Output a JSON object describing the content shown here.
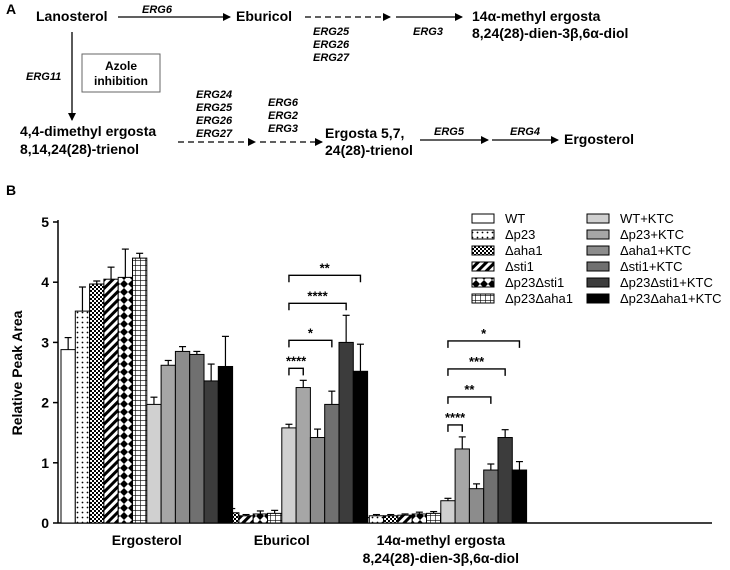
{
  "panel_a": {
    "label": "A",
    "nodes": {
      "lanosterol": "Lanosterol",
      "eburicol": "Eburicol",
      "methyl_ergosta_l1": "14α-methyl ergosta",
      "methyl_ergosta_l2": "8,24(28)-dien-3β,6α-diol",
      "dimethyl_l1": "4,4-dimethyl ergosta",
      "dimethyl_l2": "8,14,24(28)-trienol",
      "ergosta_l1": "Ergosta 5,7,",
      "ergosta_l2": "24(28)-trienol",
      "ergosterol": "Ergosterol"
    },
    "enzymes": {
      "erg6_top": "ERG6",
      "erg11": "ERG11",
      "erg3_top": "ERG3",
      "erg5": "ERG5",
      "erg4": "ERG4",
      "stack_eburicol": [
        "ERG25",
        "ERG26",
        "ERG27"
      ],
      "stack_c4": [
        "ERG24",
        "ERG25",
        "ERG26",
        "ERG27"
      ],
      "stack_c5": [
        "ERG6",
        "ERG2",
        "ERG3"
      ]
    },
    "azole_box": [
      "Azole",
      "inhibition"
    ]
  },
  "panel_b": {
    "label": "B"
  },
  "chart_data": {
    "type": "bar",
    "ylabel": "Relative Peak Area",
    "ylim": [
      0,
      5
    ],
    "yticks": [
      "0",
      "1",
      "2",
      "3",
      "4",
      "5"
    ],
    "group_labels": [
      [
        "Ergosterol"
      ],
      [
        "Eburicol"
      ],
      [
        "14α-methyl ergosta",
        "8,24(28)-dien-3β,6α-diol"
      ]
    ],
    "series": [
      {
        "name": "WT",
        "pattern": "white",
        "values": [
          2.88,
          0.2,
          0.09
        ],
        "errors": [
          0.2,
          0.03,
          0.02
        ]
      },
      {
        "name": "Δp23",
        "pattern": "dots",
        "values": [
          3.52,
          0.19,
          0.12
        ],
        "errors": [
          0.4,
          0.04,
          0.02
        ]
      },
      {
        "name": "Δaha1",
        "pattern": "check",
        "values": [
          3.97,
          0.17,
          0.12
        ],
        "errors": [
          0.05,
          0.07,
          0.02
        ]
      },
      {
        "name": "Δsti1",
        "pattern": "hatch",
        "values": [
          4.05,
          0.12,
          0.13
        ],
        "errors": [
          0.2,
          0.02,
          0.02
        ]
      },
      {
        "name": "Δp23Δsti1",
        "pattern": "diamond",
        "values": [
          4.08,
          0.15,
          0.15
        ],
        "errors": [
          0.47,
          0.05,
          0.03
        ]
      },
      {
        "name": "Δp23Δaha1",
        "pattern": "grid",
        "values": [
          4.4,
          0.16,
          0.16
        ],
        "errors": [
          0.08,
          0.05,
          0.03
        ]
      },
      {
        "name": "WT+KTC",
        "pattern": "#d0d0d0",
        "values": [
          1.97,
          1.58,
          0.37
        ],
        "errors": [
          0.12,
          0.06,
          0.04
        ]
      },
      {
        "name": "Δp23+KTC",
        "pattern": "#a6a6a6",
        "values": [
          2.62,
          2.25,
          1.23
        ],
        "errors": [
          0.08,
          0.12,
          0.2
        ]
      },
      {
        "name": "Δaha1+KTC",
        "pattern": "#8c8c8c",
        "values": [
          2.85,
          1.42,
          0.57
        ],
        "errors": [
          0.08,
          0.14,
          0.08
        ]
      },
      {
        "name": "Δsti1+KTC",
        "pattern": "#707070",
        "values": [
          2.8,
          1.97,
          0.88
        ],
        "errors": [
          0.05,
          0.22,
          0.1
        ]
      },
      {
        "name": "Δp23Δsti1+KTC",
        "pattern": "#3c3c3c",
        "values": [
          2.36,
          3.0,
          1.42
        ],
        "errors": [
          0.28,
          0.45,
          0.13
        ]
      },
      {
        "name": "Δp23Δaha1+KTC",
        "pattern": "#000000",
        "values": [
          2.6,
          2.52,
          0.88
        ],
        "errors": [
          0.5,
          0.45,
          0.14
        ]
      }
    ],
    "significance": [
      {
        "group": 1,
        "from": 6,
        "to": 7,
        "label": "****"
      },
      {
        "group": 1,
        "from": 6,
        "to": 9,
        "label": "*"
      },
      {
        "group": 1,
        "from": 6,
        "to": 10,
        "label": "****"
      },
      {
        "group": 1,
        "from": 6,
        "to": 11,
        "label": "**"
      },
      {
        "group": 2,
        "from": 6,
        "to": 7,
        "label": "****"
      },
      {
        "group": 2,
        "from": 6,
        "to": 9,
        "label": "**"
      },
      {
        "group": 2,
        "from": 6,
        "to": 10,
        "label": "***"
      },
      {
        "group": 2,
        "from": 6,
        "to": 11,
        "label": "*"
      }
    ]
  }
}
